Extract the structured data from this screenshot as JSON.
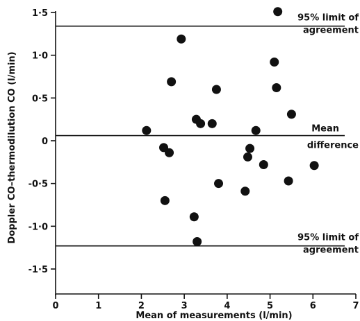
{
  "chart_data": {
    "type": "scatter",
    "xlabel": "Mean of measurements (l/min)",
    "ylabel": "Doppler CO–thermodilution CO (l/min)",
    "xlim": [
      0,
      7
    ],
    "ylim": [
      -1.5,
      1.5
    ],
    "x_ticks": [
      0,
      1,
      2,
      3,
      4,
      5,
      6,
      7
    ],
    "y_ticks": [
      1.5,
      1.0,
      0.5,
      0,
      -0.5,
      -1.0,
      -1.5
    ],
    "x_tick_labels": [
      "0",
      "1",
      "2",
      "3",
      "4",
      "5",
      "6",
      "7"
    ],
    "y_tick_labels": [
      "1·5",
      "1·0",
      "0·5",
      "0",
      "-0·5",
      "-1·0",
      "-1·5"
    ],
    "grid": false,
    "reference_lines": [
      {
        "y": 1.34,
        "label_lines": [
          "95% limit of",
          "agreement"
        ]
      },
      {
        "y": 0.06,
        "label_lines": [
          "Mean",
          "difference"
        ]
      },
      {
        "y": -1.23,
        "label_lines": [
          "95% limit of",
          "agreement"
        ]
      }
    ],
    "points": [
      {
        "x": 2.12,
        "y": 0.12
      },
      {
        "x": 2.52,
        "y": -0.08
      },
      {
        "x": 2.55,
        "y": -0.7
      },
      {
        "x": 2.65,
        "y": -0.14
      },
      {
        "x": 2.7,
        "y": 0.69
      },
      {
        "x": 2.93,
        "y": 1.19
      },
      {
        "x": 3.23,
        "y": -0.89
      },
      {
        "x": 3.28,
        "y": 0.25
      },
      {
        "x": 3.3,
        "y": -1.18
      },
      {
        "x": 3.38,
        "y": 0.2
      },
      {
        "x": 3.65,
        "y": 0.2
      },
      {
        "x": 3.75,
        "y": 0.6
      },
      {
        "x": 3.8,
        "y": -0.5
      },
      {
        "x": 4.42,
        "y": -0.59
      },
      {
        "x": 4.48,
        "y": -0.19
      },
      {
        "x": 4.53,
        "y": -0.09
      },
      {
        "x": 4.67,
        "y": 0.12
      },
      {
        "x": 4.85,
        "y": -0.28
      },
      {
        "x": 5.1,
        "y": 0.92
      },
      {
        "x": 5.15,
        "y": 0.62
      },
      {
        "x": 5.18,
        "y": 1.51
      },
      {
        "x": 5.43,
        "y": -0.47
      },
      {
        "x": 5.5,
        "y": 0.31
      },
      {
        "x": 6.03,
        "y": -0.29
      }
    ]
  }
}
